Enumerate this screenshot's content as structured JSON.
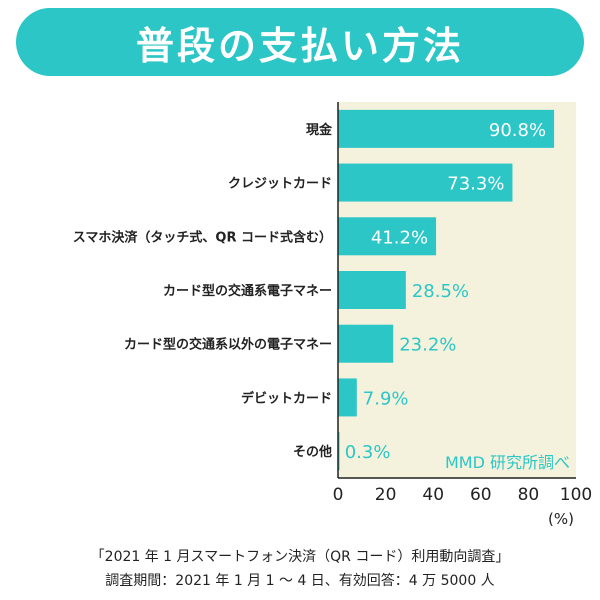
{
  "colors": {
    "bar": "#2cc6c6",
    "plot_background": "#f4f2dc",
    "axis": "#222222",
    "label_inside": "#ffffff",
    "label_outside": "#2cc6c6"
  },
  "chart_data": {
    "type": "bar",
    "orientation": "horizontal",
    "title": "普段の支払い方法",
    "categories": [
      "現金",
      "クレジットカード",
      "スマホ決済（タッチ式、QR コード式含む）",
      "カード型の交通系電子マネー",
      "カード型の交通系以外の電子マネー",
      "デビットカード",
      "その他"
    ],
    "values": [
      90.8,
      73.3,
      41.2,
      28.5,
      23.2,
      7.9,
      0.3
    ],
    "value_labels": [
      "90.8%",
      "73.3%",
      "41.2%",
      "28.5%",
      "23.2%",
      "7.9%",
      "0.3%"
    ],
    "xlim": [
      0,
      100
    ],
    "xticks": [
      0,
      20,
      40,
      60,
      80,
      100
    ],
    "xtick_labels": [
      "0",
      "20",
      "40",
      "60",
      "80",
      "100"
    ],
    "xlabel": "(%)",
    "source_note": "MMD 研究所調べ",
    "grid": false
  },
  "footer": {
    "line1": "「2021 年 1 月スマートフォン決済（QR コード）利用動向調査」",
    "line2": "調査期間：2021 年 1 月 1 ～ 4 日、有効回答：4 万 5000 人"
  }
}
